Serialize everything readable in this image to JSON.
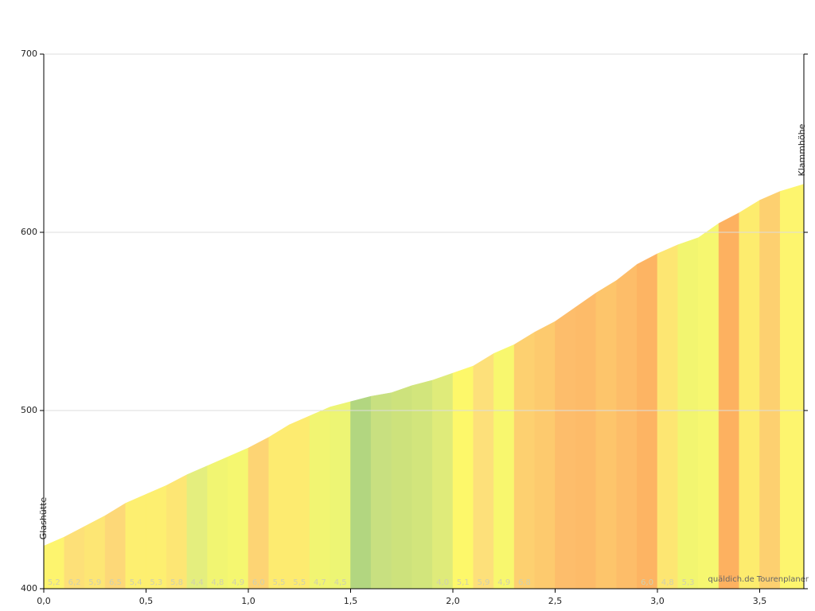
{
  "chart_data": {
    "type": "elevation-profile",
    "start_label": "Glashütte",
    "end_label": "Klammhöhe",
    "watermark": "quäldich.de Tourenplaner",
    "x": [
      0,
      0.1,
      0.2,
      0.3,
      0.4,
      0.5,
      0.6,
      0.7,
      0.8,
      0.9,
      1.0,
      1.1,
      1.2,
      1.3,
      1.4,
      1.5,
      1.6,
      1.7,
      1.8,
      1.9,
      2.0,
      2.1,
      2.2,
      2.3,
      2.4,
      2.5,
      2.6,
      2.7,
      2.8,
      2.9,
      3.0,
      3.1,
      3.2,
      3.3,
      3.4,
      3.5,
      3.6,
      3.716
    ],
    "values": [
      424,
      429,
      435,
      441,
      448,
      453,
      458,
      464,
      469,
      474,
      479,
      485,
      492,
      497,
      502,
      505,
      508,
      510,
      514,
      517,
      521,
      525,
      532,
      537,
      544,
      550,
      558,
      566,
      573,
      582,
      588,
      593,
      597,
      605,
      611,
      618,
      623,
      627
    ],
    "grades": [
      {
        "value": 5.2,
        "label": "5,2"
      },
      {
        "value": 6.2,
        "label": "6,2"
      },
      {
        "value": 5.9,
        "label": "5,9"
      },
      {
        "value": 6.5,
        "label": "6,5"
      },
      {
        "value": 5.4,
        "label": "5,4"
      },
      {
        "value": 5.3,
        "label": "5,3"
      },
      {
        "value": 5.8,
        "label": "5,8"
      },
      {
        "value": 4.4,
        "label": "4,4"
      },
      {
        "value": 4.8,
        "label": "4,8"
      },
      {
        "value": 4.9,
        "label": "4,9"
      },
      {
        "value": 6.0,
        "label": "6,0"
      },
      {
        "value": 5.5,
        "label": "5,5"
      },
      {
        "value": 5.5,
        "label": "5,5"
      },
      {
        "value": 4.7,
        "label": "4,7"
      },
      {
        "value": 4.5,
        "label": "4,5"
      },
      null,
      null,
      null,
      null,
      {
        "value": 4.0,
        "label": "4,0"
      },
      {
        "value": 5.1,
        "label": "5,1"
      },
      {
        "value": 5.9,
        "label": "5,9"
      },
      {
        "value": 4.9,
        "label": "4,9"
      },
      {
        "value": 6.8,
        "label": "6,8"
      },
      null,
      null,
      null,
      null,
      null,
      {
        "value": 6.0,
        "label": "6,0"
      },
      {
        "value": 4.8,
        "label": "4,8"
      },
      {
        "value": 5.3,
        "label": "5,3"
      },
      null,
      null,
      null,
      null,
      null
    ],
    "colors": [
      "#fdf46e",
      "#fde078",
      "#fde674",
      "#fdd878",
      "#fdef70",
      "#fdef70",
      "#fde674",
      "#e4ee7e",
      "#f1f572",
      "#f5f770",
      "#fdd474",
      "#fdeb70",
      "#fdeb70",
      "#f1f572",
      "#edf574",
      "#b2d680",
      "#c8e080",
      "#cde27c",
      "#d2e57c",
      "#dfeb7a",
      "#fdf86a",
      "#fde07a",
      "#f8f76e",
      "#fdd070",
      "#fdca6e",
      "#fdbd6b",
      "#fdbb69",
      "#fdc56b",
      "#fdbd69",
      "#fdb463",
      "#fde672",
      "#f2f570",
      "#f6f770",
      "#fdb160",
      "#fdec6e",
      "#fdd070",
      "#fdf56e",
      "#c8e07a"
    ],
    "xlim": [
      0,
      3.716
    ],
    "ylim": [
      400,
      700
    ],
    "xticks": [
      {
        "value": 0,
        "label": "0,0"
      },
      {
        "value": 0.5,
        "label": "0,5"
      },
      {
        "value": 1.0,
        "label": "1,0"
      },
      {
        "value": 1.5,
        "label": "1,5"
      },
      {
        "value": 2.0,
        "label": "2,0"
      },
      {
        "value": 2.5,
        "label": "2,5"
      },
      {
        "value": 3.0,
        "label": "3,0"
      },
      {
        "value": 3.5,
        "label": "3,5"
      }
    ],
    "yticks": [
      400,
      500,
      600,
      700
    ],
    "grid": true
  }
}
